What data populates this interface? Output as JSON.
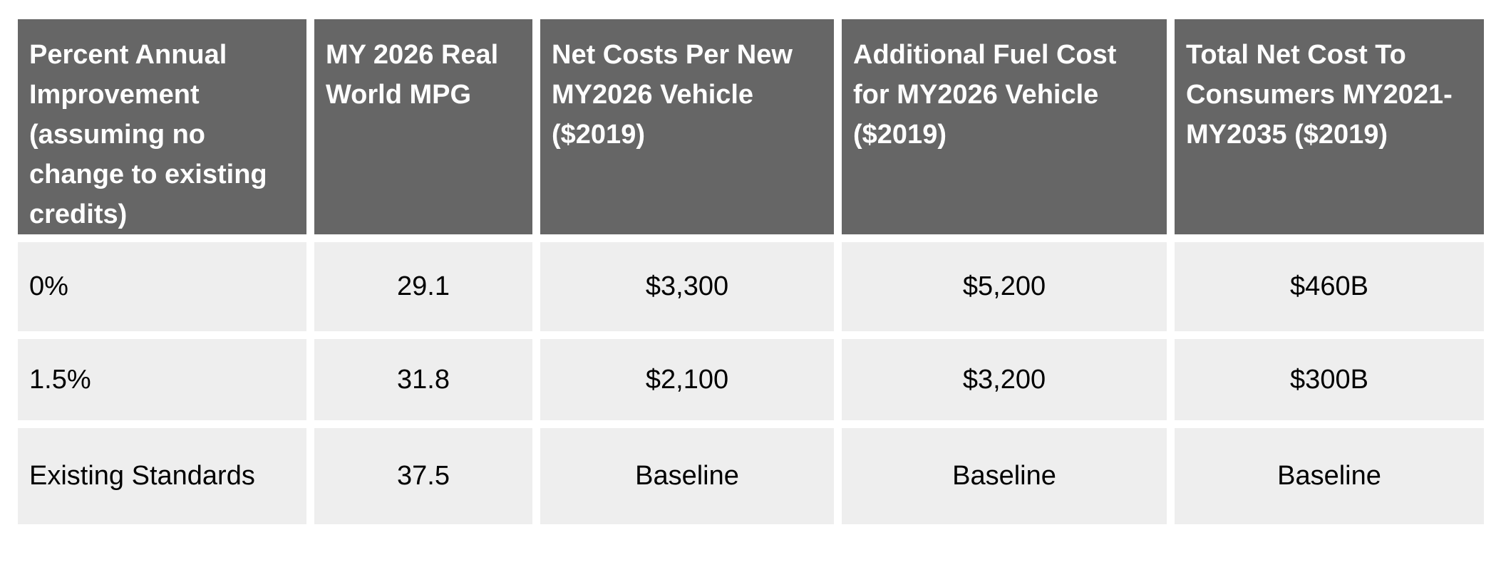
{
  "table": {
    "headers": [
      "Percent Annual Improvement (assuming no change to existing credits)",
      "MY 2026 Real World MPG",
      "Net Costs Per New MY2026 Vehicle ($2019)",
      "Additional Fuel Cost for MY2026 Vehicle ($2019)",
      "Total Net Cost To Consumers MY2021-MY2035 ($2019)"
    ],
    "rows": [
      [
        "0%",
        "29.1",
        "$3,300",
        "$5,200",
        "$460B"
      ],
      [
        "1.5%",
        "31.8",
        "$2,100",
        "$3,200",
        "$300B"
      ],
      [
        "Existing Standards",
        "37.5",
        "Baseline",
        "Baseline",
        "Baseline"
      ]
    ]
  },
  "colors": {
    "header_bg": "#666666",
    "header_text": "#ffffff",
    "cell_bg": "#eeeeee",
    "cell_text": "#000000"
  }
}
